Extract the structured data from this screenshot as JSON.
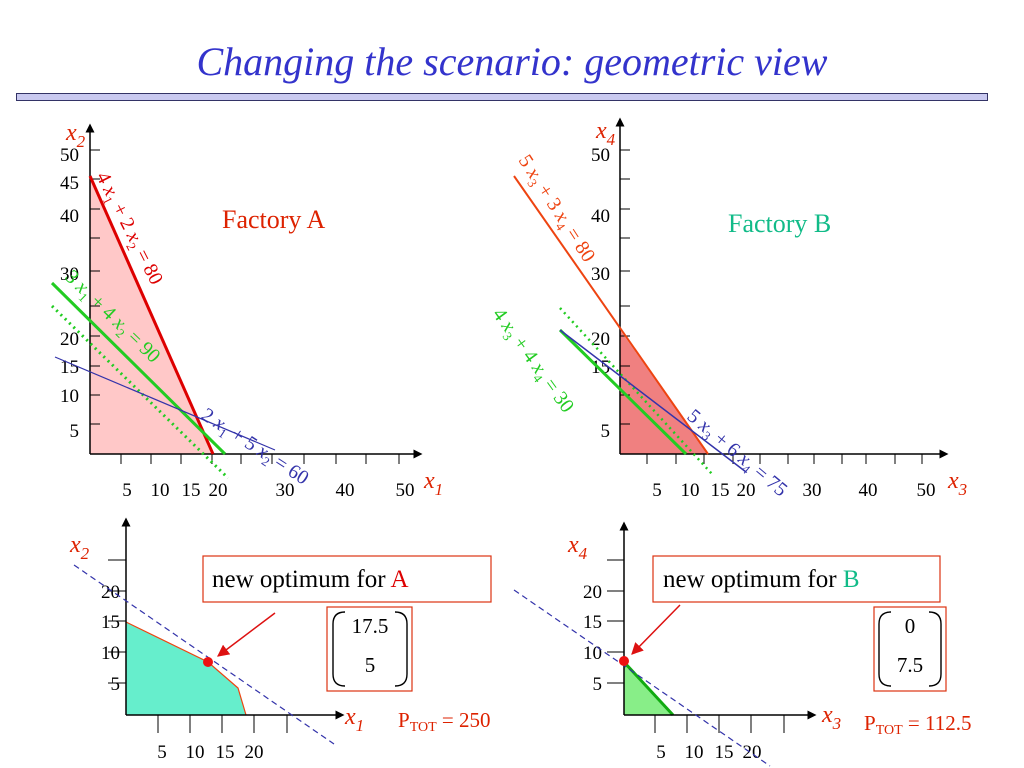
{
  "title": "Changing the scenario: geometric view",
  "factory_a": {
    "label": "Factory A",
    "x_axis": "x",
    "x_sub": "1",
    "y_axis": "x",
    "y_sub": "2",
    "x_ticks": [
      "5",
      "10",
      "15",
      "20",
      "30",
      "40",
      "50"
    ],
    "y_ticks": [
      "5",
      "10",
      "15",
      "20",
      "30",
      "40",
      "45",
      "50"
    ],
    "constraints": [
      {
        "text": "4 x1 + 2 x2 = 80",
        "parts": [
          "4 ",
          "x",
          "1",
          " + 2 ",
          "x",
          "2",
          " = 80"
        ],
        "color": "#dd0000"
      },
      {
        "text": "3 x1 + 4 x2 = 90",
        "parts": [
          "3 ",
          "x",
          "1",
          " + 4 ",
          "x",
          "2",
          " = 90"
        ],
        "color": "#22cc22"
      },
      {
        "text": "2 x1 + 5 x2 = 60",
        "parts": [
          "2 ",
          "x",
          "1",
          " + 5 ",
          "x",
          "2",
          " = 60"
        ],
        "color": "#3333aa"
      }
    ]
  },
  "factory_b": {
    "label": "Factory B",
    "x_axis": "x",
    "x_sub": "3",
    "y_axis": "x",
    "y_sub": "4",
    "x_ticks": [
      "5",
      "10",
      "15",
      "20",
      "30",
      "40",
      "50"
    ],
    "y_ticks": [
      "5",
      "15",
      "20",
      "30",
      "40",
      "50"
    ],
    "constraints": [
      {
        "text": "5 x3 + 3 x4 = 80",
        "parts": [
          "5 ",
          "x",
          "3",
          " + 3 ",
          "x",
          "4",
          " = 80"
        ],
        "color": "#ee4411"
      },
      {
        "text": "4 x3 + 4 x4 = 30",
        "parts": [
          "4 ",
          "x",
          "3",
          " + 4 ",
          "x",
          "4",
          " = 30"
        ],
        "color": "#22cc22"
      },
      {
        "text": "5 x3 + 6 x4 = 75",
        "parts": [
          "5 ",
          "x",
          "3",
          " + 6 ",
          "x",
          "4",
          " = 75"
        ],
        "color": "#3333aa"
      }
    ]
  },
  "zoom_a": {
    "x_axis": "x",
    "x_sub": "1",
    "y_axis": "x",
    "y_sub": "2",
    "x_ticks": [
      "5",
      "10",
      "15",
      "20"
    ],
    "y_ticks": [
      "5",
      "10",
      "15",
      "20"
    ],
    "callout": "new optimum for ",
    "callout_letter": "A",
    "optimum": [
      "17.5",
      "5"
    ],
    "total_label": "P",
    "total_sub": "TOT",
    "total_value": " = 250"
  },
  "zoom_b": {
    "x_axis": "x",
    "x_sub": "3",
    "y_axis": "x",
    "y_sub": "4",
    "x_ticks": [
      "5",
      "10",
      "15",
      "20"
    ],
    "y_ticks": [
      "5",
      "10",
      "15",
      "20"
    ],
    "callout": "new optimum for ",
    "callout_letter": "B",
    "optimum": [
      "0",
      "7.5"
    ],
    "total_label": "P",
    "total_sub": "TOT",
    "total_value": " = 112.5"
  },
  "colors": {
    "title": "#3333cc",
    "axis_label": "#dd2200",
    "factory_a": "#dd2200",
    "factory_b": "#11bb88",
    "region_a": "#ffc8c8",
    "region_b": "#f08080",
    "zoom_region_a": "#66eecc",
    "zoom_region_b": "#88ee88",
    "callout_border": "#dd3311",
    "optimum_dot": "#ee1111"
  }
}
